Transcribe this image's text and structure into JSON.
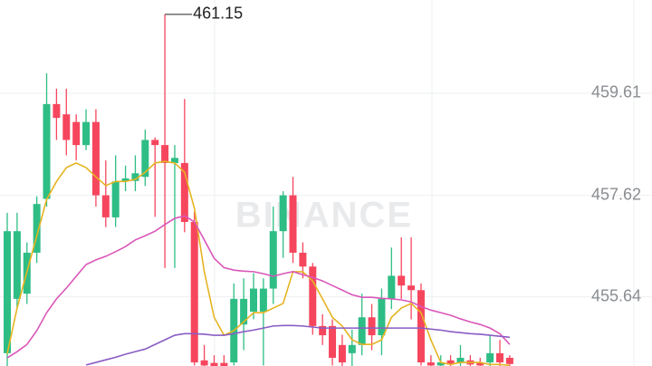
{
  "chart_data": {
    "type": "candlestick",
    "watermark": "BINANCE",
    "ylim": [
      454.29,
      461.43
    ],
    "yticks": [
      455.64,
      457.62,
      459.61
    ],
    "grid": true,
    "up_color": "#2ebd85",
    "down_color": "#f6465d",
    "annotate_index": 16,
    "open": [
      454.54,
      455.6,
      455.7,
      456.5,
      457.55,
      459.4,
      459.2,
      459.05,
      458.6,
      459.05,
      457.62,
      457.19,
      457.9,
      457.9,
      457.98,
      458.7,
      458.6,
      458.25,
      458.25,
      457.1,
      454.4,
      454.35,
      454.35,
      454.36,
      455.1,
      455.35,
      455.35,
      455.8,
      456.92,
      457.62,
      456.5,
      456.23,
      455.07,
      455.07,
      454.7,
      454.54,
      454.7,
      455.24,
      454.89,
      455.6,
      456.05,
      455.86,
      455.77,
      454.36,
      454.3,
      454.4,
      454.36,
      454.4,
      454.35,
      454.36,
      454.54,
      454.45
    ],
    "high": [
      457.28,
      457.28,
      456.7,
      457.6,
      460.0,
      459.7,
      459.7,
      459.2,
      459.3,
      459.3,
      458.3,
      458.4,
      458.2,
      458.4,
      458.9,
      458.75,
      461.15,
      458.6,
      459.5,
      457.3,
      454.7,
      454.5,
      454.5,
      455.9,
      456.0,
      456.1,
      456.0,
      457.4,
      457.7,
      457.98,
      456.7,
      456.3,
      455.3,
      455.2,
      454.9,
      455.0,
      455.7,
      455.5,
      455.8,
      456.6,
      456.8,
      456.8,
      455.9,
      454.5,
      454.5,
      454.5,
      454.7,
      454.5,
      454.45,
      454.9,
      454.8,
      454.5
    ],
    "low": [
      454.29,
      455.42,
      455.5,
      456.3,
      457.4,
      458.7,
      458.4,
      458.3,
      458.5,
      457.4,
      457.0,
      457.0,
      457.7,
      457.7,
      457.8,
      457.2,
      456.2,
      456.2,
      456.9,
      454.3,
      454.29,
      454.1,
      454.1,
      454.3,
      454.6,
      455.2,
      454.3,
      455.5,
      456.4,
      456.3,
      456.0,
      454.9,
      454.7,
      454.3,
      454.29,
      454.29,
      454.5,
      454.6,
      454.5,
      455.4,
      455.6,
      455.2,
      454.3,
      454.29,
      454.29,
      454.29,
      454.29,
      454.29,
      454.29,
      454.29,
      454.29,
      454.29
    ],
    "close": [
      456.92,
      456.92,
      456.5,
      457.45,
      459.4,
      459.13,
      458.7,
      458.6,
      459.05,
      457.62,
      457.19,
      457.89,
      457.95,
      458.05,
      458.7,
      458.6,
      458.25,
      458.35,
      457.1,
      454.36,
      454.3,
      454.2,
      454.2,
      455.6,
      455.6,
      455.8,
      455.8,
      456.92,
      457.62,
      456.5,
      456.23,
      455.07,
      454.89,
      454.45,
      454.36,
      454.7,
      455.24,
      454.89,
      455.6,
      456.05,
      455.86,
      455.77,
      454.36,
      454.3,
      454.36,
      454.32,
      454.45,
      454.32,
      454.3,
      454.54,
      454.36,
      454.33
    ],
    "lines": [
      {
        "name": "MA7",
        "color": "#e6b422",
        "values": [
          454.53,
          455.42,
          456.13,
          456.83,
          457.54,
          457.89,
          458.16,
          458.25,
          458.16,
          457.98,
          457.81,
          457.89,
          457.89,
          457.93,
          458.07,
          458.25,
          458.28,
          458.25,
          458.07,
          457.36,
          456.13,
          455.24,
          454.89,
          454.98,
          455.15,
          455.33,
          455.33,
          455.42,
          455.51,
          456.13,
          456.13,
          455.95,
          455.6,
          455.24,
          455.07,
          454.8,
          454.71,
          454.71,
          454.8,
          455.24,
          455.42,
          455.51,
          455.33,
          454.8,
          454.36,
          454.32,
          454.36,
          454.36,
          454.36,
          454.32,
          454.32,
          454.3
        ]
      },
      {
        "name": "MA25",
        "color": "#d957b9",
        "values": [
          454.45,
          454.57,
          454.71,
          454.98,
          455.33,
          455.6,
          455.81,
          456.04,
          456.27,
          456.36,
          456.43,
          456.52,
          456.62,
          456.75,
          456.83,
          456.92,
          457.05,
          457.17,
          457.22,
          457.1,
          456.75,
          456.39,
          456.21,
          456.16,
          456.14,
          456.13,
          456.09,
          456.04,
          456.09,
          456.13,
          456.07,
          456.02,
          455.95,
          455.86,
          455.77,
          455.68,
          455.63,
          455.63,
          455.61,
          455.6,
          455.58,
          455.54,
          455.45,
          455.38,
          455.33,
          455.28,
          455.21,
          455.15,
          455.1,
          455.03,
          454.92,
          454.71
        ]
      },
      {
        "name": "MA99",
        "color": "#8a5cc4",
        "values": [
          null,
          null,
          null,
          null,
          null,
          null,
          null,
          null,
          454.31,
          454.36,
          454.41,
          454.46,
          454.52,
          454.57,
          454.62,
          454.71,
          454.8,
          454.89,
          454.92,
          454.92,
          454.91,
          454.89,
          454.89,
          454.92,
          454.96,
          454.99,
          455.03,
          455.07,
          455.08,
          455.08,
          455.07,
          455.05,
          455.03,
          455.03,
          455.03,
          455.03,
          455.03,
          455.03,
          455.03,
          455.03,
          455.03,
          455.03,
          455.03,
          455.01,
          454.99,
          454.96,
          454.94,
          454.92,
          454.91,
          454.89,
          454.87,
          454.85
        ]
      }
    ]
  }
}
